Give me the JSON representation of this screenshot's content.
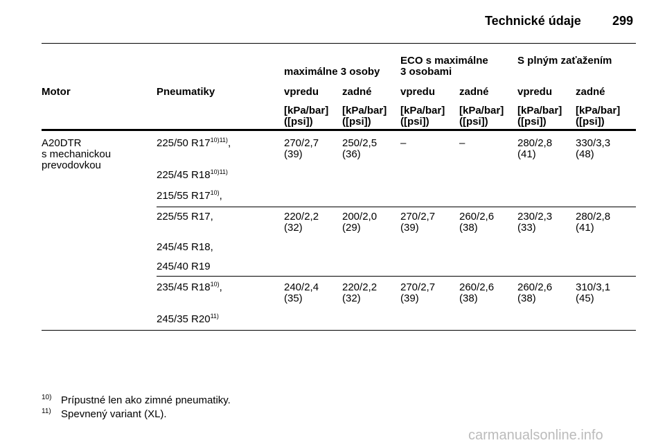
{
  "header": {
    "title": "Technické údaje",
    "page": "299"
  },
  "table": {
    "group_headers": [
      [
        "maximálne 3 osoby"
      ],
      [
        "ECO s maximálne",
        "3 osobami"
      ],
      [
        "S plným zaťažením"
      ]
    ],
    "columns": [
      "Motor",
      "Pneumatiky",
      "vpredu",
      "zadné",
      "vpredu",
      "zadné",
      "vpredu",
      "zadné"
    ],
    "units": [
      [
        "[kPa/bar]",
        "([psi])"
      ],
      [
        "[kPa/bar]",
        "([psi])"
      ],
      [
        "[kPa/bar]",
        "([psi])"
      ],
      [
        "[kPa/bar]",
        "([psi])"
      ],
      [
        "[kPa/bar]",
        "([psi])"
      ],
      [
        "[kPa/bar]",
        "([psi])"
      ]
    ],
    "motor": [
      "A20DTR",
      "s mechanickou",
      "prevodovkou"
    ],
    "rows": [
      {
        "tires": [
          {
            "base": "225/50 R17",
            "sup": "10)11)",
            "tail": ","
          },
          {
            "base": "225/45 R18",
            "sup": "10)11)"
          },
          {
            "base": "215/55 R17",
            "sup": "10)",
            "tail": ","
          }
        ],
        "pressures": [
          [
            "270/2,7",
            "(39)"
          ],
          [
            "250/2,5",
            "(36)"
          ],
          [
            "–"
          ],
          [
            "–"
          ],
          [
            "280/2,8",
            "(41)"
          ],
          [
            "330/3,3",
            "(48)"
          ]
        ]
      },
      {
        "tires": [
          {
            "base": "225/55 R17,"
          },
          {
            "base": "245/45 R18,"
          },
          {
            "base": "245/40 R19"
          }
        ],
        "pressures": [
          [
            "220/2,2",
            "(32)"
          ],
          [
            "200/2,0",
            "(29)"
          ],
          [
            "270/2,7",
            "(39)"
          ],
          [
            "260/2,6",
            "(38)"
          ],
          [
            "230/2,3",
            "(33)"
          ],
          [
            "280/2,8",
            "(41)"
          ]
        ]
      },
      {
        "tires": [
          {
            "base": "235/45 R18",
            "sup": "10)",
            "tail": ","
          },
          {
            "base": "245/35 R20",
            "sup": "11)"
          }
        ],
        "pressures": [
          [
            "240/2,4",
            "(35)"
          ],
          [
            "220/2,2",
            "(32)"
          ],
          [
            "270/2,7",
            "(39)"
          ],
          [
            "260/2,6",
            "(38)"
          ],
          [
            "260/2,6",
            "(38)"
          ],
          [
            "310/3,1",
            "(45)"
          ]
        ]
      }
    ]
  },
  "footnotes": [
    {
      "mark": "10)",
      "text": "Prípustné len ako zimné pneumatiky."
    },
    {
      "mark": "11)",
      "text": "Spevnený variant (XL)."
    }
  ],
  "watermark": "carmanualsonline.info"
}
